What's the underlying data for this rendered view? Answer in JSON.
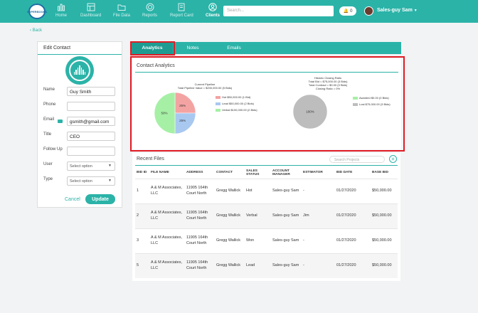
{
  "logo": {
    "text": "SUPERBOOKS"
  },
  "nav": [
    {
      "label": "Home",
      "icon": "home-icon"
    },
    {
      "label": "Dashboard",
      "icon": "dashboard-icon"
    },
    {
      "label": "File Data",
      "icon": "folder-icon"
    },
    {
      "label": "Reports",
      "icon": "reports-icon"
    },
    {
      "label": "Report Card",
      "icon": "report-card-icon"
    },
    {
      "label": "Clients",
      "icon": "clients-icon"
    }
  ],
  "search": {
    "placeholder": "Search..."
  },
  "notifications": {
    "count": "0"
  },
  "user": {
    "name": "Sales-guy Sam"
  },
  "back": {
    "label": "Back"
  },
  "edit_contact": {
    "title": "Edit Contact",
    "fields": {
      "name_label": "Name",
      "name_value": "Guy Smith",
      "phone_label": "Phone",
      "phone_value": "",
      "email_label": "Email",
      "email_value": "gsmith@gmail.com",
      "title_label": "Title",
      "title_value": "CEO",
      "followup_label": "Follow Up",
      "followup_value": "",
      "user_label": "User",
      "user_value": "Select option",
      "type_label": "Type",
      "type_value": "Select option"
    },
    "cancel_label": "Cancel",
    "update_label": "Update"
  },
  "tabs": [
    {
      "label": "Analytics",
      "active": true
    },
    {
      "label": "Notes",
      "active": false
    },
    {
      "label": "Emails",
      "active": false
    }
  ],
  "analytics": {
    "title": "Contact Analytics",
    "pipeline": {
      "title": "Current Pipeline",
      "subtitle": "Total Pipeline Value = $200,000.00 (5 Bids)",
      "legend": [
        "Hot $50,000.00 (1 Bid)",
        "Lead $50,000.00 (2 Bids)",
        "Verbal $100,000.00 (2 Bids)"
      ],
      "slice_labels": [
        "25%",
        "25%",
        "50%"
      ]
    },
    "closing": {
      "title": "Historic Closing Ratio",
      "line1": "Total Bid = $75,000.00 (3 Bids)",
      "line2": "Total Contract = $0.00 (0 Bids)",
      "line3": "Closing Ratio = 0%",
      "legend": [
        "Awarded $0.00 (0 Bids)",
        "Lost $75,000.00 (3 Bids)"
      ],
      "slice_label": "100%"
    }
  },
  "chart_data": [
    {
      "type": "pie",
      "title": "Current Pipeline",
      "categories": [
        "Hot",
        "Lead",
        "Verbal"
      ],
      "values": [
        25,
        25,
        50
      ],
      "colors": [
        "#f4a3a3",
        "#a8c8f0",
        "#a6f0a6"
      ]
    },
    {
      "type": "pie",
      "title": "Historic Closing Ratio",
      "categories": [
        "Awarded",
        "Lost"
      ],
      "values": [
        0,
        100
      ],
      "colors": [
        "#a6f0a6",
        "#bdbdbd"
      ]
    }
  ],
  "recent_files": {
    "title": "Recent Files",
    "search_placeholder": "Search Projects",
    "columns": [
      "BID ID",
      "FILE NAME",
      "ADDRESS",
      "CONTACT",
      "SALES STATUS",
      "ACCOUNT MANAGER",
      "ESTIMATOR",
      "BID DATE",
      "BASE BID"
    ],
    "rows": [
      {
        "id": "1",
        "file": "A & M Associates, LLC",
        "address": "11905 164th Court North",
        "contact": "Gregg Wallick",
        "status": "Hot",
        "manager": "Sales-guy Sam",
        "estimator": "-",
        "date": "01/27/2020",
        "bid": "$50,000.00"
      },
      {
        "id": "2",
        "file": "A & M Associates, LLC",
        "address": "11905 164th Court North",
        "contact": "Gregg Wallick",
        "status": "Verbal",
        "manager": "Sales-guy Sam",
        "estimator": "Jim",
        "date": "01/27/2020",
        "bid": "$50,000.00"
      },
      {
        "id": "3",
        "file": "A & M Associates, LLC",
        "address": "11905 164th Court North",
        "contact": "Gregg Wallick",
        "status": "Won",
        "manager": "Sales-guy Sam",
        "estimator": "-",
        "date": "01/27/2020",
        "bid": "$50,000.00"
      },
      {
        "id": "5",
        "file": "A & M Associates, LLC",
        "address": "11905 164th Court North",
        "contact": "Gregg Wallick",
        "status": "Lead",
        "manager": "Sales-guy Sam",
        "estimator": "-",
        "date": "01/27/2020",
        "bid": "$50,000.00"
      }
    ]
  },
  "colors": {
    "accent": "#2bb3a8",
    "highlight": "#e01b24"
  }
}
